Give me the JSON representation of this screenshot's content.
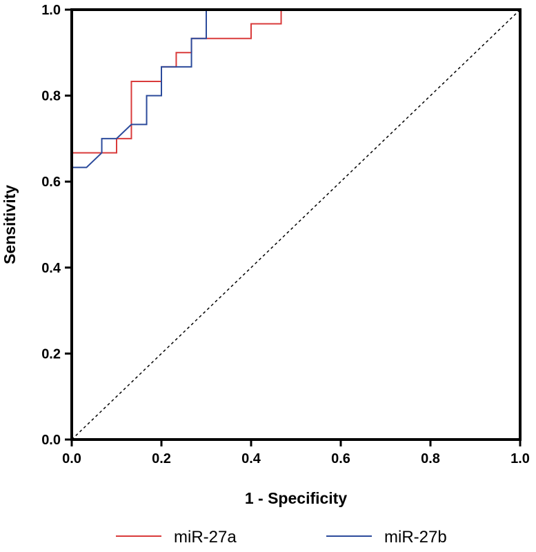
{
  "chart_data": {
    "type": "line",
    "xlabel": "1 - Specificity",
    "ylabel": "Sensitivity",
    "xlim": [
      0,
      1
    ],
    "ylim": [
      0,
      1
    ],
    "x_ticks": [
      "0.0",
      "0.2",
      "0.4",
      "0.6",
      "0.8",
      "1.0"
    ],
    "y_ticks": [
      "0.0",
      "0.2",
      "0.4",
      "0.6",
      "0.8",
      "1.0"
    ],
    "grid": false,
    "legend_position": "bottom",
    "reference_line": {
      "x": [
        0,
        1
      ],
      "y": [
        0,
        1
      ],
      "style": "dashed"
    },
    "series": [
      {
        "name": "miR-27a",
        "color": "#d93a3a",
        "x": [
          0,
          0,
          0.1,
          0.1,
          0.133,
          0.133,
          0.2,
          0.2,
          0.233,
          0.233,
          0.267,
          0.267,
          0.3,
          0.3,
          0.4,
          0.4,
          0.467,
          0.467,
          1.0
        ],
        "y": [
          0,
          0.667,
          0.667,
          0.7,
          0.7,
          0.833,
          0.833,
          0.867,
          0.867,
          0.9,
          0.9,
          0.933,
          0.933,
          0.933,
          0.933,
          0.967,
          0.967,
          1.0,
          1.0
        ]
      },
      {
        "name": "miR-27b",
        "color": "#2b4a9b",
        "x": [
          0,
          0,
          0.033,
          0.067,
          0.067,
          0.1,
          0.1,
          0.133,
          0.133,
          0.167,
          0.167,
          0.2,
          0.2,
          0.267,
          0.267,
          0.3,
          0.3,
          1.0
        ],
        "y": [
          0,
          0.633,
          0.633,
          0.667,
          0.7,
          0.7,
          0.7,
          0.733,
          0.733,
          0.733,
          0.8,
          0.8,
          0.867,
          0.867,
          0.933,
          0.933,
          1.0,
          1.0
        ]
      }
    ]
  }
}
